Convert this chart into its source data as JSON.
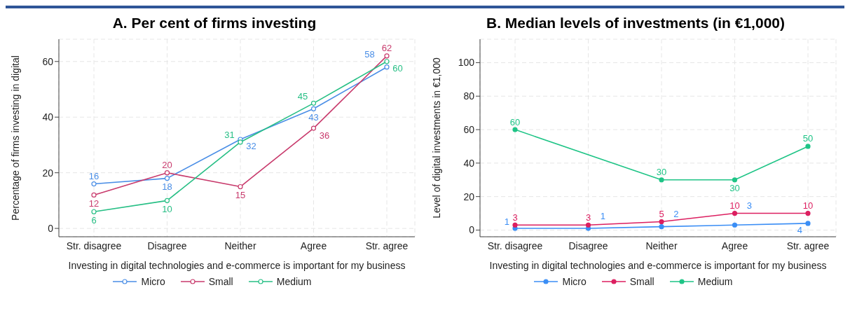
{
  "chart_data": [
    {
      "type": "line",
      "title": "A. Per cent of firms investing",
      "xlabel": "Investing in digital technologies and e-commerce is important for my business",
      "ylabel": "Percentage of firms investing in digital",
      "categories": [
        "Str. disagree",
        "Disagree",
        "Neither",
        "Agree",
        "Str. agree"
      ],
      "ylim": [
        -3,
        68
      ],
      "yticks": [
        0,
        20,
        40,
        60
      ],
      "grid": true,
      "legend": "bottom",
      "marker": "circle",
      "data_labels": true,
      "series": [
        {
          "name": "Micro",
          "color": "#4a8ee6",
          "values": [
            16,
            18,
            32,
            43,
            58
          ]
        },
        {
          "name": "Small",
          "color": "#c83a6c",
          "values": [
            12,
            20,
            15,
            36,
            62
          ]
        },
        {
          "name": "Medium",
          "color": "#27bf85",
          "values": [
            6,
            10,
            31,
            45,
            60
          ]
        }
      ]
    },
    {
      "type": "line",
      "title": "B. Median levels of investments (in €1,000)",
      "xlabel": "Investing in digital technologies and e-commerce is important for my business",
      "ylabel": "Level of digital investments in €1,000",
      "categories": [
        "Str. disagree",
        "Disagree",
        "Neither",
        "Agree",
        "Str. agree"
      ],
      "ylim": [
        -4,
        114
      ],
      "yticks": [
        0,
        20,
        40,
        60,
        80,
        100
      ],
      "grid": true,
      "legend": "bottom",
      "marker": "circle",
      "data_labels": true,
      "series": [
        {
          "name": "Micro",
          "color": "#3b8ef5",
          "values": [
            1,
            1,
            2,
            3,
            4
          ]
        },
        {
          "name": "Small",
          "color": "#dc1f60",
          "values": [
            3,
            3,
            5,
            10,
            10
          ]
        },
        {
          "name": "Medium",
          "color": "#1ec486",
          "values": [
            60,
            null,
            30,
            30,
            50
          ]
        }
      ]
    }
  ]
}
